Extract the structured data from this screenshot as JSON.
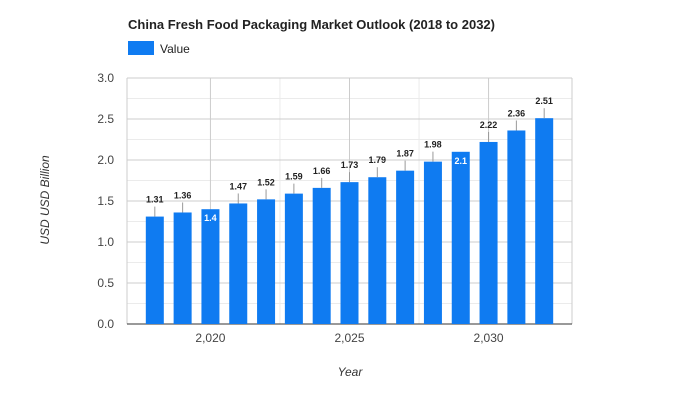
{
  "chart_data": {
    "type": "bar",
    "title": "China Fresh Food Packaging Market Outlook (2018 to 2032)",
    "xlabel": "Year",
    "ylabel": "USD USD Billion",
    "x": [
      2018,
      2019,
      2020,
      2021,
      2022,
      2023,
      2024,
      2025,
      2026,
      2027,
      2028,
      2029,
      2030,
      2031,
      2032
    ],
    "series": [
      {
        "name": "Value",
        "values": [
          1.31,
          1.36,
          1.4,
          1.47,
          1.52,
          1.59,
          1.66,
          1.73,
          1.79,
          1.87,
          1.98,
          2.1,
          2.22,
          2.36,
          2.51
        ],
        "labels": [
          "1.31",
          "1.36",
          "1.4",
          "1.47",
          "1.52",
          "1.59",
          "1.66",
          "1.73",
          "1.79",
          "1.87",
          "1.98",
          "2.1",
          "2.22",
          "2.36",
          "2.51"
        ],
        "label_inside_bar": [
          false,
          false,
          true,
          false,
          false,
          false,
          false,
          false,
          false,
          false,
          false,
          true,
          false,
          false,
          false
        ]
      }
    ],
    "xticks": [
      2020,
      2025,
      2030
    ],
    "xtick_labels": [
      "2,020",
      "2,025",
      "2,030"
    ],
    "yticks": [
      0,
      0.5,
      1,
      1.5,
      2,
      2.5,
      3
    ],
    "ytick_labels": [
      "0.0",
      "0.5",
      "1.0",
      "1.5",
      "2.0",
      "2.5",
      "3.0"
    ],
    "ylim": [
      0,
      3
    ],
    "xlim": [
      2017,
      2033
    ],
    "grid": true,
    "legend_position": "top-left",
    "colors": {
      "bar": "#0f7bf1",
      "grid_major": "#cccccc",
      "grid_minor": "#ebebeb",
      "baseline": "#333333"
    }
  }
}
